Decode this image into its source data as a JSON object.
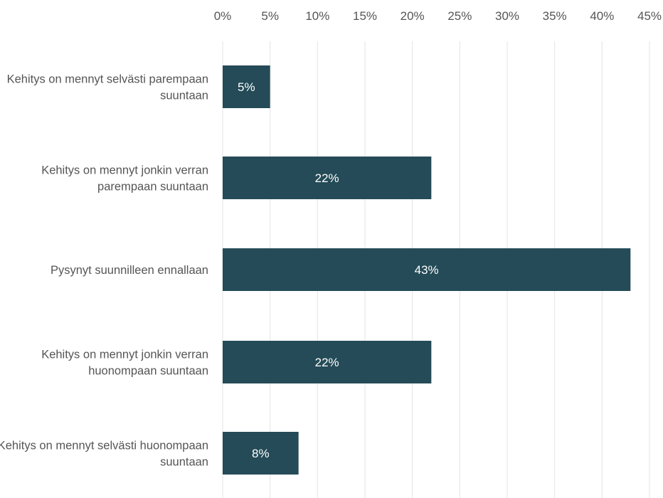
{
  "chart_data": {
    "type": "bar",
    "orientation": "horizontal",
    "categories": [
      [
        "Kehitys on mennyt selvästi parempaan",
        "suuntaan"
      ],
      [
        "Kehitys on mennyt jonkin verran",
        "parempaan suuntaan"
      ],
      [
        "Pysynyt suunnilleen ennallaan"
      ],
      [
        "Kehitys on mennyt jonkin verran",
        "huonompaan suuntaan"
      ],
      [
        "Kehitys on mennyt selvästi huonompaan",
        "suuntaan"
      ]
    ],
    "values": [
      5,
      22,
      43,
      22,
      8
    ],
    "data_labels": [
      "5%",
      "22%",
      "43%",
      "22%",
      "8%"
    ],
    "x_ticks": [
      "0%",
      "5%",
      "10%",
      "15%",
      "20%",
      "25%",
      "30%",
      "35%",
      "40%",
      "45%"
    ],
    "xlim": [
      0,
      45
    ],
    "x_axis_position": "top",
    "grid": true,
    "title": "",
    "xlabel": "",
    "ylabel": "",
    "colors": {
      "bar": "#244b57",
      "grid": "#e3e3e3",
      "text": "#555555",
      "data_label": "#ffffff"
    }
  }
}
